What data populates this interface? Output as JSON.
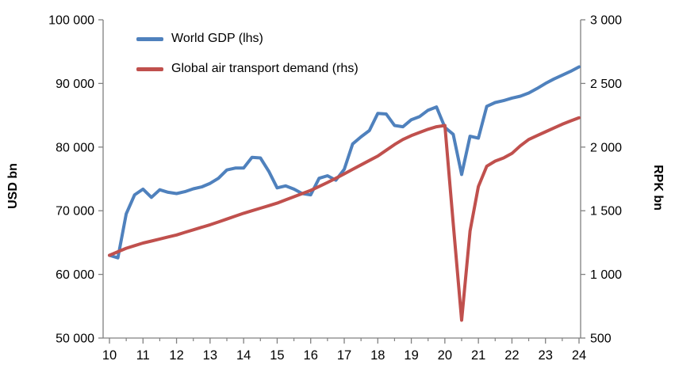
{
  "chart_data": {
    "type": "line",
    "title": "",
    "axis_color": "#808080",
    "text_color": "#000000",
    "x": [
      10,
      10.25,
      10.5,
      10.75,
      11,
      11.25,
      11.5,
      11.75,
      12,
      12.25,
      12.5,
      12.75,
      13,
      13.25,
      13.5,
      13.75,
      14,
      14.25,
      14.5,
      14.75,
      15,
      15.25,
      15.5,
      15.75,
      16,
      16.25,
      16.5,
      16.75,
      17,
      17.25,
      17.5,
      17.75,
      18,
      18.25,
      18.5,
      18.75,
      19,
      19.25,
      19.5,
      19.75,
      20,
      20.25,
      20.5,
      20.75,
      21,
      21.25,
      21.5,
      21.75,
      22,
      22.25,
      22.5,
      22.75,
      23,
      23.25,
      23.5,
      23.75,
      24
    ],
    "series": [
      {
        "name": "World GDP (lhs)",
        "axis": "left",
        "color": "#4F81BD",
        "values": [
          63000,
          62600,
          69500,
          72500,
          73400,
          72100,
          73300,
          72900,
          72700,
          73000,
          73450,
          73750,
          74300,
          75100,
          76400,
          76700,
          76700,
          78400,
          78300,
          76200,
          73600,
          73900,
          73400,
          72700,
          72500,
          75100,
          75500,
          74800,
          76500,
          80500,
          81600,
          82600,
          85300,
          85200,
          83400,
          83200,
          84300,
          84800,
          85800,
          86300,
          83100,
          82000,
          75700,
          81700,
          81400,
          86400,
          87000,
          87300,
          87700,
          88000,
          88500,
          89200,
          90000,
          90700,
          91300,
          91900,
          92600
        ]
      },
      {
        "name": "Global air transport demand (rhs)",
        "axis": "right",
        "color": "#C0504D",
        "values": [
          1150,
          1178,
          1205,
          1226,
          1246,
          1262,
          1278,
          1294,
          1310,
          1330,
          1350,
          1370,
          1390,
          1412,
          1435,
          1458,
          1480,
          1500,
          1520,
          1540,
          1560,
          1585,
          1610,
          1635,
          1660,
          1690,
          1722,
          1755,
          1790,
          1825,
          1860,
          1895,
          1930,
          1975,
          2020,
          2060,
          2090,
          2115,
          2140,
          2160,
          2170,
          1400,
          640,
          1340,
          1690,
          1850,
          1890,
          1915,
          1950,
          2010,
          2060,
          2090,
          2120,
          2150,
          2180,
          2205,
          2230
        ]
      }
    ],
    "left_axis": {
      "label": "USD bn",
      "min": 50000,
      "max": 100000,
      "tick_labels": [
        "100 000",
        "90 000",
        "80 000",
        "70 000",
        "60 000",
        "50 000"
      ]
    },
    "right_axis": {
      "label": "RPK bn",
      "min": 500,
      "max": 3000,
      "tick_labels": [
        "3 000",
        "2 500",
        "2 000",
        "1 500",
        "1 000",
        "500"
      ]
    },
    "x_axis": {
      "min": 10,
      "max": 24,
      "tick_labels": [
        "10",
        "11",
        "12",
        "13",
        "14",
        "15",
        "16",
        "17",
        "18",
        "19",
        "20",
        "21",
        "22",
        "23",
        "24"
      ]
    },
    "legend": {
      "position": "top-left"
    }
  }
}
